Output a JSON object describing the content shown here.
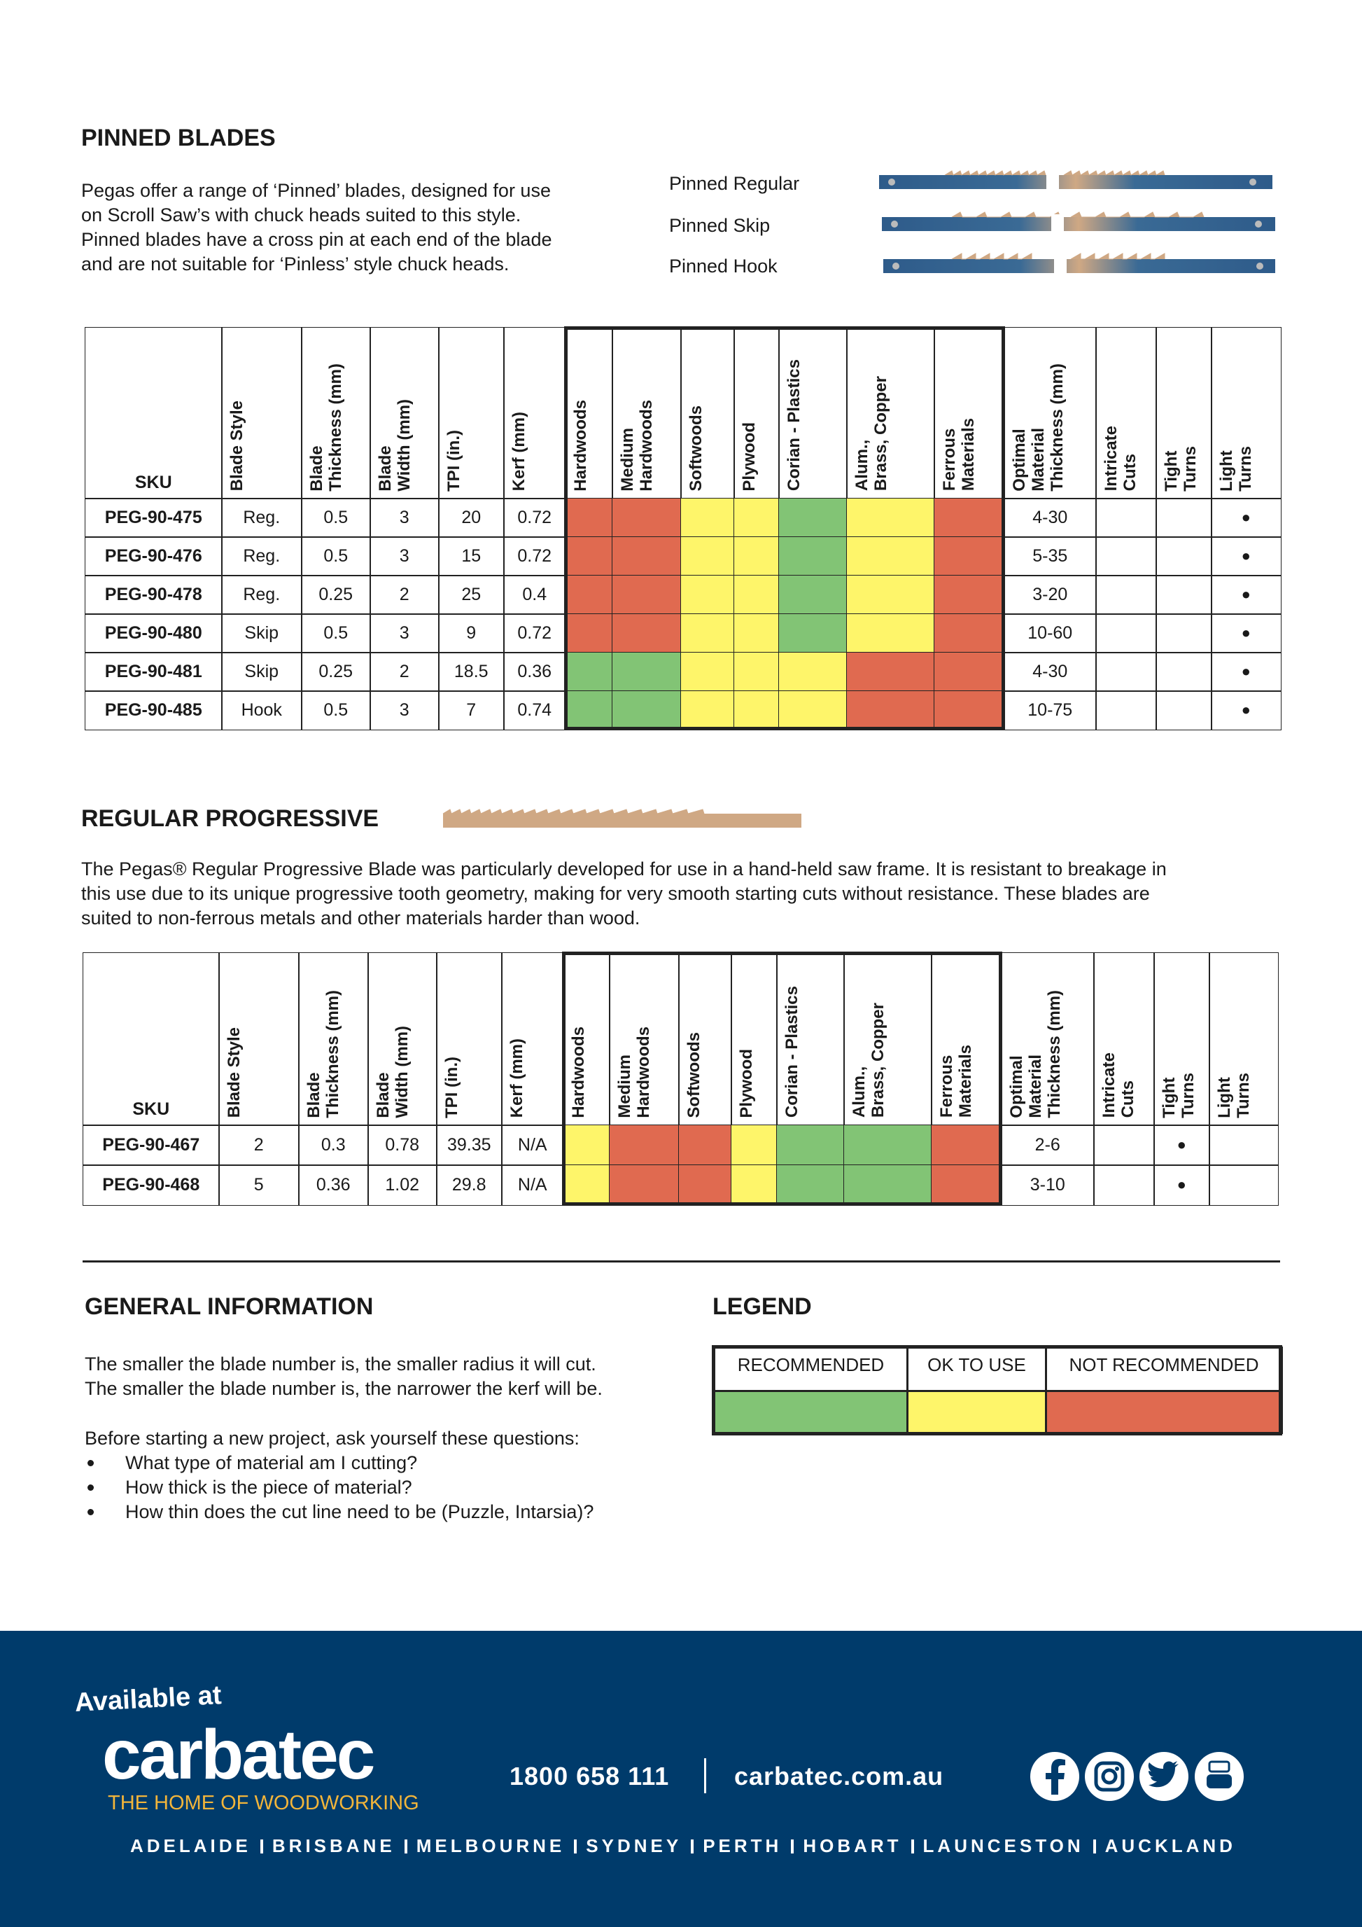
{
  "pinned": {
    "title": "PINNED BLADES",
    "description": [
      "Pegas offer a range of ‘Pinned’ blades, designed for use",
      "on Scroll Saw’s with chuck heads suited to this style.",
      "Pinned blades have a cross pin at each end of the blade",
      "and are not suitable for ‘Pinless’ style chuck heads."
    ],
    "blade_types": [
      "Pinned Regular",
      "Pinned Skip",
      "Pinned Hook"
    ],
    "table": {
      "headers": [
        [
          "SKU"
        ],
        [
          "Blade Style"
        ],
        [
          "Blade",
          "Thickness (mm)"
        ],
        [
          "Blade",
          "Width (mm)"
        ],
        [
          "TPI (in.)"
        ],
        [
          "Kerf (mm)"
        ],
        [
          "Hardwoods"
        ],
        [
          "Medium",
          "Hardwoods"
        ],
        [
          "Softwoods"
        ],
        [
          "Plywood"
        ],
        [
          "Corian  - Plastics"
        ],
        [
          "Alum.,",
          "Brass, Copper"
        ],
        [
          "Ferrous",
          "Materials"
        ],
        [
          "Optimal",
          "Material",
          "Thickness (mm)"
        ],
        [
          "Intricate",
          "Cuts"
        ],
        [
          "Tight",
          "Turns"
        ],
        [
          "Light",
          "Turns"
        ]
      ],
      "rows": [
        {
          "sku": "PEG-90-475",
          "specs": [
            "Reg.",
            "0.5",
            "3",
            "20",
            "0.72"
          ],
          "materials": [
            "#e06a50",
            "#e06a50",
            "#fef56a",
            "#fef56a",
            "#82c475",
            "#fef56a",
            "#e06a50"
          ],
          "optimal": "4-30",
          "turns": [
            null,
            null,
            "●"
          ]
        },
        {
          "sku": "PEG-90-476",
          "specs": [
            "Reg.",
            "0.5",
            "3",
            "15",
            "0.72"
          ],
          "materials": [
            "#e06a50",
            "#e06a50",
            "#fef56a",
            "#fef56a",
            "#82c475",
            "#fef56a",
            "#e06a50"
          ],
          "optimal": "5-35",
          "turns": [
            null,
            null,
            "●"
          ]
        },
        {
          "sku": "PEG-90-478",
          "specs": [
            "Reg.",
            "0.25",
            "2",
            "25",
            "0.4"
          ],
          "materials": [
            "#e06a50",
            "#e06a50",
            "#fef56a",
            "#fef56a",
            "#82c475",
            "#fef56a",
            "#e06a50"
          ],
          "optimal": "3-20",
          "turns": [
            null,
            null,
            "●"
          ]
        },
        {
          "sku": "PEG-90-480",
          "specs": [
            "Skip",
            "0.5",
            "3",
            "9",
            "0.72"
          ],
          "materials": [
            "#e06a50",
            "#e06a50",
            "#fef56a",
            "#fef56a",
            "#82c475",
            "#fef56a",
            "#e06a50"
          ],
          "optimal": "10-60",
          "turns": [
            null,
            null,
            "●"
          ]
        },
        {
          "sku": "PEG-90-481",
          "specs": [
            "Skip",
            "0.25",
            "2",
            "18.5",
            "0.36"
          ],
          "materials": [
            "#82c475",
            "#82c475",
            "#fef56a",
            "#fef56a",
            "#fef56a",
            "#e06a50",
            "#e06a50"
          ],
          "optimal": "4-30",
          "turns": [
            null,
            null,
            "●"
          ]
        },
        {
          "sku": "PEG-90-485",
          "specs": [
            "Hook",
            "0.5",
            "3",
            "7",
            "0.74"
          ],
          "materials": [
            "#82c475",
            "#82c475",
            "#fef56a",
            "#fef56a",
            "#fef56a",
            "#e06a50",
            "#e06a50"
          ],
          "optimal": "10-75",
          "turns": [
            null,
            null,
            "●"
          ]
        }
      ]
    }
  },
  "progressive": {
    "title": "REGULAR PROGRESSIVE",
    "description": [
      "The Pegas® Regular Progressive Blade was particularly developed for use in a hand-held saw frame. It is resistant to breakage in",
      "this use due to its unique progressive tooth geometry, making for very smooth starting cuts without resistance. These blades are",
      "suited to non-ferrous metals and other materials harder than wood."
    ],
    "table": {
      "headers": [
        [
          "SKU"
        ],
        [
          "Blade Style"
        ],
        [
          "Blade",
          "Thickness (mm)"
        ],
        [
          "Blade",
          "Width (mm)"
        ],
        [
          "TPI (in.)"
        ],
        [
          "Kerf (mm)"
        ],
        [
          "Hardwoods"
        ],
        [
          "Medium",
          "Hardwoods"
        ],
        [
          "Softwoods"
        ],
        [
          "Plywood"
        ],
        [
          "Corian  - Plastics"
        ],
        [
          "Alum.,",
          "Brass, Copper"
        ],
        [
          "Ferrous",
          "Materials"
        ],
        [
          "Optimal",
          "Material",
          "Thickness (mm)"
        ],
        [
          "Intricate",
          "Cuts"
        ],
        [
          "Tight",
          "Turns"
        ],
        [
          "Light",
          "Turns"
        ]
      ],
      "rows": [
        {
          "sku": "PEG-90-467",
          "specs": [
            "2",
            "0.3",
            "0.78",
            "39.35",
            "N/A"
          ],
          "materials": [
            "#fef56a",
            "#e06a50",
            "#e06a50",
            "#fef56a",
            "#82c475",
            "#82c475",
            "#e06a50"
          ],
          "optimal": "2-6",
          "turns": [
            null,
            "●",
            null
          ]
        },
        {
          "sku": "PEG-90-468",
          "specs": [
            "5",
            "0.36",
            "1.02",
            "29.8",
            "N/A"
          ],
          "materials": [
            "#fef56a",
            "#e06a50",
            "#e06a50",
            "#fef56a",
            "#82c475",
            "#82c475",
            "#e06a50"
          ],
          "optimal": "3-10",
          "turns": [
            null,
            "●",
            null
          ]
        }
      ]
    }
  },
  "general": {
    "title": "GENERAL INFORMATION",
    "lines": [
      "The smaller the blade number is, the smaller radius it will cut.",
      "The smaller the blade number is, the narrower the kerf will be."
    ],
    "intro": "Before starting a new project, ask yourself these questions:",
    "questions": [
      "What type of material am I cutting?",
      "How thick is the piece of material?",
      "How thin does the cut line need to be (Puzzle, Intarsia)?"
    ]
  },
  "legend": {
    "title": "LEGEND",
    "items": [
      {
        "label": "RECOMMENDED",
        "color": "#82c475"
      },
      {
        "label": "OK TO USE",
        "color": "#fef56a"
      },
      {
        "label": "NOT RECOMMENDED",
        "color": "#e06a50"
      }
    ]
  },
  "footer": {
    "available": "Available at",
    "brand": "carbatec",
    "tagline": "THE HOME OF WOODWORKING",
    "phone": "1800 658 111",
    "website": "carbatec.com.au",
    "cities": [
      "ADELAIDE",
      "BRISBANE",
      "MELBOURNE",
      "SYDNEY",
      "PERTH",
      "HOBART",
      "LAUNCESTON",
      "AUCKLAND"
    ]
  }
}
